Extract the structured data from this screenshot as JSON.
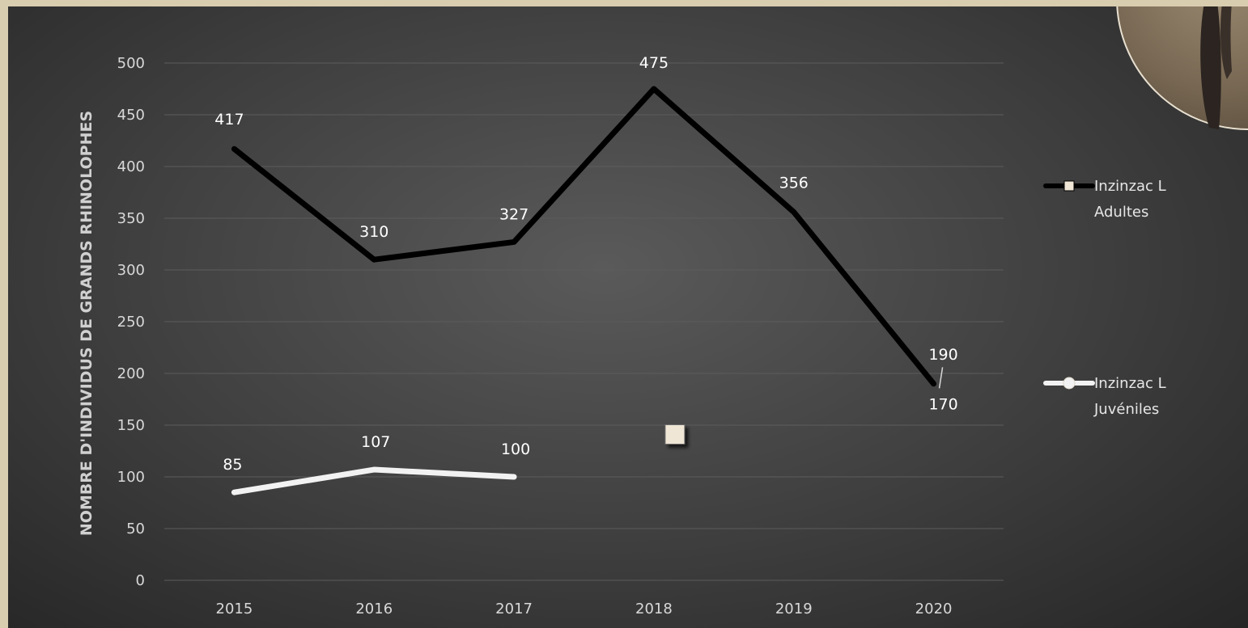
{
  "chart_data": {
    "type": "line",
    "ylabel": "NOMBRE D'INDIVIDUS DE GRANDS RHINOLOPHES",
    "xlabel": "",
    "categories": [
      "2015",
      "2016",
      "2017",
      "2018",
      "2019",
      "2020"
    ],
    "ylim": [
      0,
      500
    ],
    "yticks": [
      0,
      50,
      100,
      150,
      200,
      250,
      300,
      350,
      400,
      450,
      500
    ],
    "grid": true,
    "legend_position": "right",
    "series": [
      {
        "name": "Inzinzac L Adultes",
        "name_lines": [
          "Inzinzac L",
          "Adultes"
        ],
        "color": "#000000",
        "marker": "square",
        "values": [
          417,
          310,
          327,
          475,
          356,
          190
        ],
        "labels": [
          "417",
          "310",
          "327",
          "475",
          "356",
          "190"
        ]
      },
      {
        "name": "Inzinzac L Juvéniles",
        "name_lines": [
          "Inzinzac L",
          "Juvéniles"
        ],
        "color": "#f2f2f2",
        "marker": "circle",
        "values": [
          85,
          107,
          100,
          null,
          null,
          null
        ],
        "labels": [
          "85",
          "107",
          "100"
        ]
      }
    ],
    "annotations": [
      {
        "text": "170",
        "x": "2020",
        "y": 170
      }
    ],
    "stray_marker": {
      "shape": "square",
      "color": "#f0e6d6",
      "x": "2018",
      "y": 141
    }
  }
}
